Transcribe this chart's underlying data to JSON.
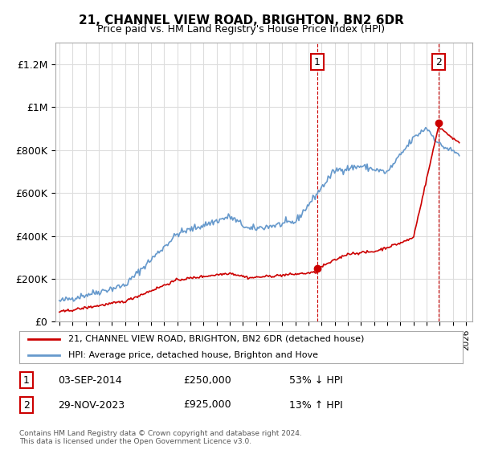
{
  "title": "21, CHANNEL VIEW ROAD, BRIGHTON, BN2 6DR",
  "subtitle": "Price paid vs. HM Land Registry's House Price Index (HPI)",
  "ylim": [
    0,
    1300000
  ],
  "yticks": [
    0,
    200000,
    400000,
    600000,
    800000,
    1000000,
    1200000
  ],
  "ytick_labels": [
    "£0",
    "£200K",
    "£400K",
    "£600K",
    "£800K",
    "£1M",
    "£1.2M"
  ],
  "xlim_start": 1994.7,
  "xlim_end": 2026.5,
  "hpi_color": "#6699cc",
  "price_color": "#cc0000",
  "transaction1_date": 2014.67,
  "transaction1_price": 250000,
  "transaction2_date": 2023.92,
  "transaction2_price": 925000,
  "legend_line1": "21, CHANNEL VIEW ROAD, BRIGHTON, BN2 6DR (detached house)",
  "legend_line2": "HPI: Average price, detached house, Brighton and Hove",
  "footnote": "Contains HM Land Registry data © Crown copyright and database right 2024.\nThis data is licensed under the Open Government Licence v3.0.",
  "background_color": "#ffffff",
  "grid_color": "#dddddd"
}
